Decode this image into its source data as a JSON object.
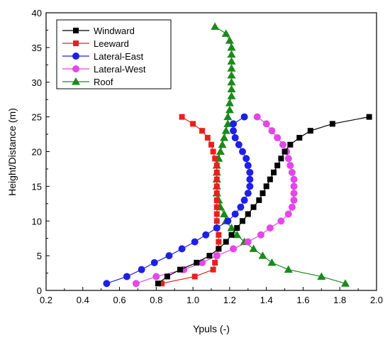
{
  "chart_data": {
    "type": "scatter",
    "title": "",
    "xlabel": "Ypuls (-)",
    "ylabel": "Height/Distance (m)",
    "xlim": [
      0.2,
      2.0
    ],
    "ylim": [
      0,
      40
    ],
    "xticks": [
      "0.2",
      "0.4",
      "0.6",
      "0.8",
      "1.0",
      "1.2",
      "1.4",
      "1.6",
      "1.8",
      "2.0"
    ],
    "yticks": [
      "0",
      "5",
      "10",
      "15",
      "20",
      "25",
      "30",
      "35",
      "40"
    ],
    "grid": false,
    "legend_position": "top-left",
    "series": [
      {
        "name": "Windward",
        "color": "#000000",
        "marker": "square",
        "points": [
          [
            0.81,
            1
          ],
          [
            0.86,
            2
          ],
          [
            0.93,
            3
          ],
          [
            1.02,
            4
          ],
          [
            1.09,
            5
          ],
          [
            1.14,
            6
          ],
          [
            1.18,
            7
          ],
          [
            1.21,
            8
          ],
          [
            1.24,
            9
          ],
          [
            1.27,
            10
          ],
          [
            1.3,
            11
          ],
          [
            1.33,
            12
          ],
          [
            1.36,
            13
          ],
          [
            1.38,
            14
          ],
          [
            1.4,
            15
          ],
          [
            1.42,
            16
          ],
          [
            1.44,
            17
          ],
          [
            1.46,
            18
          ],
          [
            1.48,
            19
          ],
          [
            1.5,
            20
          ],
          [
            1.53,
            21
          ],
          [
            1.58,
            22
          ],
          [
            1.64,
            23
          ],
          [
            1.76,
            24
          ],
          [
            1.96,
            25
          ]
        ]
      },
      {
        "name": "Leeward",
        "color": "#e8201c",
        "marker": "square",
        "points": [
          [
            0.83,
            1
          ],
          [
            1.01,
            2
          ],
          [
            1.11,
            3
          ],
          [
            1.12,
            4
          ],
          [
            1.13,
            5
          ],
          [
            1.14,
            6
          ],
          [
            1.14,
            7
          ],
          [
            1.14,
            8
          ],
          [
            1.13,
            9
          ],
          [
            1.13,
            10
          ],
          [
            1.13,
            11
          ],
          [
            1.13,
            12
          ],
          [
            1.13,
            13
          ],
          [
            1.13,
            14
          ],
          [
            1.13,
            15
          ],
          [
            1.13,
            16
          ],
          [
            1.13,
            17
          ],
          [
            1.13,
            18
          ],
          [
            1.12,
            19
          ],
          [
            1.11,
            20
          ],
          [
            1.1,
            21
          ],
          [
            1.08,
            22
          ],
          [
            1.05,
            23
          ],
          [
            1.0,
            24
          ],
          [
            0.94,
            25
          ]
        ]
      },
      {
        "name": "Lateral-East",
        "color": "#1f1fe6",
        "marker": "circle",
        "points": [
          [
            0.53,
            1
          ],
          [
            0.64,
            2
          ],
          [
            0.72,
            3
          ],
          [
            0.79,
            4
          ],
          [
            0.87,
            5
          ],
          [
            0.94,
            6
          ],
          [
            1.01,
            7
          ],
          [
            1.07,
            8
          ],
          [
            1.13,
            9
          ],
          [
            1.19,
            10
          ],
          [
            1.23,
            11
          ],
          [
            1.26,
            12
          ],
          [
            1.28,
            13
          ],
          [
            1.3,
            14
          ],
          [
            1.31,
            15
          ],
          [
            1.31,
            16
          ],
          [
            1.31,
            17
          ],
          [
            1.3,
            18
          ],
          [
            1.29,
            19
          ],
          [
            1.27,
            20
          ],
          [
            1.25,
            21
          ],
          [
            1.23,
            22
          ],
          [
            1.22,
            23
          ],
          [
            1.22,
            24
          ],
          [
            1.28,
            25
          ]
        ]
      },
      {
        "name": "Lateral-West",
        "color": "#e347e8",
        "marker": "circle",
        "points": [
          [
            0.69,
            1
          ],
          [
            0.8,
            2
          ],
          [
            0.95,
            3
          ],
          [
            1.05,
            4
          ],
          [
            1.13,
            5
          ],
          [
            1.22,
            6
          ],
          [
            1.3,
            7
          ],
          [
            1.37,
            8
          ],
          [
            1.42,
            9
          ],
          [
            1.48,
            10
          ],
          [
            1.52,
            11
          ],
          [
            1.54,
            12
          ],
          [
            1.55,
            13
          ],
          [
            1.55,
            14
          ],
          [
            1.55,
            15
          ],
          [
            1.55,
            16
          ],
          [
            1.54,
            17
          ],
          [
            1.53,
            18
          ],
          [
            1.52,
            19
          ],
          [
            1.51,
            20
          ],
          [
            1.49,
            21
          ],
          [
            1.46,
            22
          ],
          [
            1.43,
            23
          ],
          [
            1.4,
            24
          ],
          [
            1.35,
            25
          ]
        ]
      },
      {
        "name": "Roof",
        "color": "#1a8a1a",
        "marker": "triangle",
        "points": [
          [
            1.83,
            1
          ],
          [
            1.7,
            2
          ],
          [
            1.52,
            3
          ],
          [
            1.43,
            4
          ],
          [
            1.38,
            5
          ],
          [
            1.33,
            6
          ],
          [
            1.28,
            7
          ],
          [
            1.24,
            8
          ],
          [
            1.21,
            9
          ],
          [
            1.18,
            10
          ],
          [
            1.17,
            11
          ],
          [
            1.15,
            12
          ],
          [
            1.14,
            13
          ],
          [
            1.13,
            14
          ],
          [
            1.13,
            15
          ],
          [
            1.13,
            16
          ],
          [
            1.13,
            17
          ],
          [
            1.13,
            18
          ],
          [
            1.14,
            19
          ],
          [
            1.15,
            20
          ],
          [
            1.16,
            21
          ],
          [
            1.17,
            22
          ],
          [
            1.18,
            23
          ],
          [
            1.19,
            24
          ],
          [
            1.19,
            25
          ],
          [
            1.2,
            26
          ],
          [
            1.2,
            27
          ],
          [
            1.21,
            28
          ],
          [
            1.21,
            29
          ],
          [
            1.21,
            30
          ],
          [
            1.21,
            31
          ],
          [
            1.21,
            32
          ],
          [
            1.21,
            33
          ],
          [
            1.21,
            34
          ],
          [
            1.21,
            35
          ],
          [
            1.2,
            36
          ],
          [
            1.18,
            37
          ],
          [
            1.12,
            38
          ]
        ]
      }
    ]
  }
}
